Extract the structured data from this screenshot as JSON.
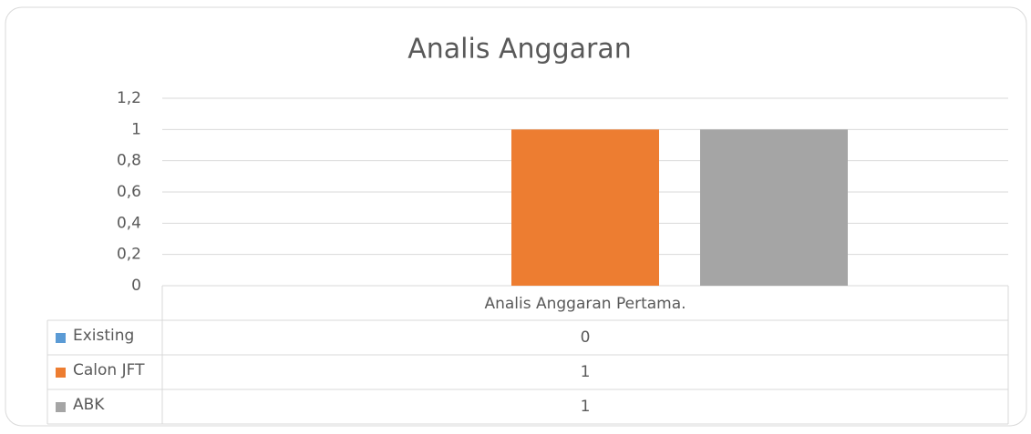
{
  "chart_data": {
    "type": "bar",
    "title": "Analis Anggaran",
    "categories": [
      "Analis Anggaran Pertama."
    ],
    "series": [
      {
        "name": "Existing",
        "color": "#5b9bd5",
        "values": [
          0
        ]
      },
      {
        "name": "Calon JFT",
        "color": "#ed7d31",
        "values": [
          1
        ]
      },
      {
        "name": "ABK",
        "color": "#a5a5a5",
        "values": [
          1
        ]
      }
    ],
    "ylim": [
      0,
      1.2
    ],
    "yticks": [
      0,
      {
        "value": 0.2,
        "label": "0,2"
      },
      {
        "value": 0.4,
        "label": "0,4"
      },
      {
        "value": 0.6,
        "label": "0,6"
      },
      {
        "value": 0.8,
        "label": "0,8"
      },
      1,
      {
        "value": 1.2,
        "label": "1,2"
      }
    ],
    "grid": true,
    "data_table": true
  }
}
